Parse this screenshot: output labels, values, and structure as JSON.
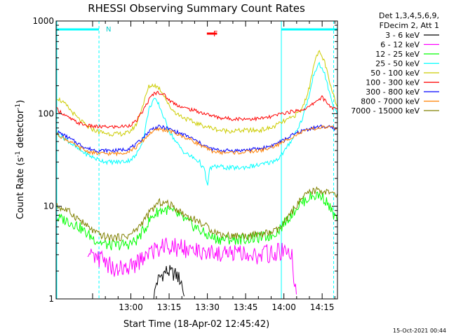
{
  "chart_data": {
    "type": "line",
    "title": "RHESSI Observing Summary Count Rates",
    "xlabel": "Start Time (18-Apr-02 12:45:42)",
    "ylabel_main": "Count Rate (s",
    "ylabel_sup1": "-1",
    "ylabel_mid": " detector",
    "ylabel_sup2": "-1",
    "ylabel_end": ")",
    "yscale": "log",
    "ylim": [
      1,
      1000
    ],
    "xlim_min": [
      -14.3,
      96
    ],
    "x_ticks": [
      {
        "label": "13:00",
        "min": 15
      },
      {
        "label": "13:15",
        "min": 30
      },
      {
        "label": "13:30",
        "min": 45
      },
      {
        "label": "13:45",
        "min": 60
      },
      {
        "label": "14:00",
        "min": 75
      },
      {
        "label": "14:15",
        "min": 90
      }
    ],
    "y_ticks": [
      {
        "label": "1",
        "value": 1
      },
      {
        "label": "10",
        "value": 10
      },
      {
        "label": "100",
        "value": 100
      },
      {
        "label": "1000",
        "value": 1000
      }
    ],
    "legend_header": [
      "Det 1,3,4,5,6,9,",
      "FDecim 2, Att 1"
    ],
    "flags": {
      "n_label": "N",
      "f_label": "F",
      "night_periods": [
        [
          -14.3,
          2.5
        ],
        [
          74.0,
          96
        ]
      ],
      "flare_marker_min": [
        41.5,
        45.5
      ],
      "dashed_lines_min": [
        2.5,
        94.5
      ],
      "solid_lines_min": [
        -14.3,
        74.0
      ],
      "flag_color": "#00ffff",
      "flare_color": "#ff0000"
    },
    "series": [
      {
        "name": "3 - 6 keV",
        "color": "#000000",
        "points": [
          [
            24,
            1
          ],
          [
            25,
            1.5
          ],
          [
            27,
            1.8
          ],
          [
            29,
            2.0
          ],
          [
            31,
            1.9
          ],
          [
            33,
            1.8
          ],
          [
            35,
            1.5
          ],
          [
            36,
            1
          ]
        ]
      },
      {
        "name": "6 - 12 keV",
        "color": "#ff00ff",
        "points": [
          [
            -2,
            3.2
          ],
          [
            3,
            3.0
          ],
          [
            8,
            2.5
          ],
          [
            12,
            2.4
          ],
          [
            16,
            2.6
          ],
          [
            20,
            3.0
          ],
          [
            25,
            3.8
          ],
          [
            30,
            4.2
          ],
          [
            35,
            4.0
          ],
          [
            40,
            3.8
          ],
          [
            45,
            3.6
          ],
          [
            50,
            3.5
          ],
          [
            55,
            3.5
          ],
          [
            60,
            3.4
          ],
          [
            65,
            3.4
          ],
          [
            70,
            3.5
          ],
          [
            75,
            3.6
          ],
          [
            78,
            3.4
          ],
          [
            80,
            1
          ]
        ]
      },
      {
        "name": "12 - 25 keV",
        "color": "#00ff00",
        "points": [
          [
            -14,
            7.5
          ],
          [
            -10,
            7.0
          ],
          [
            -6,
            6.2
          ],
          [
            -2,
            5.0
          ],
          [
            2,
            4.2
          ],
          [
            6,
            3.8
          ],
          [
            10,
            3.8
          ],
          [
            14,
            3.9
          ],
          [
            17,
            4.2
          ],
          [
            20,
            5.5
          ],
          [
            23,
            7.5
          ],
          [
            26,
            9.0
          ],
          [
            29,
            9.2
          ],
          [
            32,
            8.5
          ],
          [
            35,
            7.5
          ],
          [
            38,
            6.5
          ],
          [
            41,
            5.8
          ],
          [
            44,
            5.0
          ],
          [
            47,
            4.6
          ],
          [
            50,
            4.4
          ],
          [
            54,
            4.4
          ],
          [
            58,
            4.4
          ],
          [
            62,
            4.5
          ],
          [
            66,
            4.6
          ],
          [
            70,
            4.8
          ],
          [
            73,
            5.6
          ],
          [
            76,
            7.0
          ],
          [
            79,
            9.0
          ],
          [
            82,
            11.0
          ],
          [
            85,
            12.5
          ],
          [
            88,
            13.2
          ],
          [
            90,
            12.8
          ],
          [
            92,
            11.0
          ],
          [
            94,
            8.5
          ],
          [
            96,
            7.0
          ]
        ]
      },
      {
        "name": "25 - 50 keV",
        "color": "#00ffff",
        "points": [
          [
            -14,
            62
          ],
          [
            -10,
            52
          ],
          [
            -6,
            42
          ],
          [
            -2,
            36
          ],
          [
            2,
            32
          ],
          [
            6,
            30
          ],
          [
            10,
            30
          ],
          [
            14,
            31
          ],
          [
            17,
            35
          ],
          [
            20,
            55
          ],
          [
            22,
            110
          ],
          [
            24,
            145
          ],
          [
            26,
            125
          ],
          [
            28,
            90
          ],
          [
            30,
            65
          ],
          [
            33,
            48
          ],
          [
            36,
            38
          ],
          [
            39,
            34
          ],
          [
            42,
            30
          ],
          [
            44,
            24
          ],
          [
            45,
            16
          ],
          [
            46,
            26
          ],
          [
            49,
            27
          ],
          [
            53,
            26
          ],
          [
            58,
            26
          ],
          [
            62,
            27
          ],
          [
            66,
            28
          ],
          [
            70,
            30
          ],
          [
            73,
            33
          ],
          [
            76,
            42
          ],
          [
            79,
            58
          ],
          [
            82,
            85
          ],
          [
            85,
            160
          ],
          [
            87,
            290
          ],
          [
            89,
            340
          ],
          [
            91,
            270
          ],
          [
            93,
            160
          ],
          [
            95,
            110
          ],
          [
            96,
            95
          ]
        ]
      },
      {
        "name": "50 - 100 keV",
        "color": "#cccc00",
        "points": [
          [
            -14,
            150
          ],
          [
            -10,
            120
          ],
          [
            -6,
            90
          ],
          [
            -2,
            72
          ],
          [
            2,
            64
          ],
          [
            6,
            61
          ],
          [
            10,
            60
          ],
          [
            14,
            62
          ],
          [
            17,
            75
          ],
          [
            20,
            130
          ],
          [
            22,
            195
          ],
          [
            24,
            205
          ],
          [
            26,
            190
          ],
          [
            28,
            160
          ],
          [
            30,
            120
          ],
          [
            33,
            100
          ],
          [
            36,
            90
          ],
          [
            39,
            82
          ],
          [
            42,
            76
          ],
          [
            45,
            72
          ],
          [
            50,
            66
          ],
          [
            55,
            65
          ],
          [
            60,
            66
          ],
          [
            65,
            66
          ],
          [
            70,
            70
          ],
          [
            74,
            80
          ],
          [
            78,
            90
          ],
          [
            82,
            110
          ],
          [
            85,
            190
          ],
          [
            87,
            380
          ],
          [
            89,
            460
          ],
          [
            91,
            360
          ],
          [
            93,
            210
          ],
          [
            95,
            140
          ],
          [
            96,
            125
          ]
        ]
      },
      {
        "name": "100 - 300 keV",
        "color": "#ff0000",
        "points": [
          [
            -14,
            112
          ],
          [
            -10,
            92
          ],
          [
            -6,
            80
          ],
          [
            -2,
            74
          ],
          [
            2,
            72
          ],
          [
            6,
            72
          ],
          [
            10,
            72
          ],
          [
            14,
            74
          ],
          [
            17,
            82
          ],
          [
            20,
            110
          ],
          [
            22,
            140
          ],
          [
            24,
            165
          ],
          [
            26,
            170
          ],
          [
            28,
            160
          ],
          [
            30,
            140
          ],
          [
            33,
            125
          ],
          [
            36,
            115
          ],
          [
            39,
            110
          ],
          [
            42,
            104
          ],
          [
            45,
            98
          ],
          [
            50,
            90
          ],
          [
            55,
            88
          ],
          [
            60,
            88
          ],
          [
            65,
            88
          ],
          [
            70,
            92
          ],
          [
            74,
            100
          ],
          [
            78,
            105
          ],
          [
            82,
            110
          ],
          [
            85,
            118
          ],
          [
            88,
            140
          ],
          [
            90,
            150
          ],
          [
            92,
            130
          ],
          [
            94,
            115
          ],
          [
            96,
            110
          ]
        ]
      },
      {
        "name": "300 - 800 keV",
        "color": "#0000ff",
        "points": [
          [
            -14,
            64
          ],
          [
            -10,
            56
          ],
          [
            -6,
            48
          ],
          [
            -2,
            42
          ],
          [
            2,
            40
          ],
          [
            6,
            40
          ],
          [
            10,
            40
          ],
          [
            14,
            42
          ],
          [
            17,
            46
          ],
          [
            20,
            56
          ],
          [
            23,
            68
          ],
          [
            26,
            72
          ],
          [
            29,
            70
          ],
          [
            32,
            65
          ],
          [
            35,
            60
          ],
          [
            38,
            56
          ],
          [
            41,
            50
          ],
          [
            44,
            45
          ],
          [
            46,
            42
          ],
          [
            50,
            40
          ],
          [
            54,
            40
          ],
          [
            58,
            40
          ],
          [
            62,
            41
          ],
          [
            66,
            42
          ],
          [
            70,
            45
          ],
          [
            74,
            50
          ],
          [
            78,
            58
          ],
          [
            82,
            65
          ],
          [
            86,
            70
          ],
          [
            90,
            73
          ],
          [
            93,
            71
          ],
          [
            96,
            68
          ]
        ]
      },
      {
        "name": "800 - 7000 keV",
        "color": "#ff8000",
        "points": [
          [
            -14,
            60
          ],
          [
            -10,
            52
          ],
          [
            -6,
            44
          ],
          [
            -2,
            39
          ],
          [
            2,
            37
          ],
          [
            6,
            37
          ],
          [
            10,
            37
          ],
          [
            14,
            39
          ],
          [
            17,
            43
          ],
          [
            20,
            52
          ],
          [
            23,
            63
          ],
          [
            26,
            68
          ],
          [
            29,
            66
          ],
          [
            32,
            62
          ],
          [
            35,
            57
          ],
          [
            38,
            53
          ],
          [
            41,
            48
          ],
          [
            44,
            43
          ],
          [
            46,
            40
          ],
          [
            50,
            38
          ],
          [
            54,
            38
          ],
          [
            58,
            38
          ],
          [
            62,
            39
          ],
          [
            66,
            40
          ],
          [
            70,
            43
          ],
          [
            74,
            48
          ],
          [
            78,
            56
          ],
          [
            82,
            63
          ],
          [
            86,
            68
          ],
          [
            90,
            71
          ],
          [
            93,
            71
          ],
          [
            96,
            70
          ]
        ]
      },
      {
        "name": "7000 - 15000 keV",
        "color": "#808000",
        "points": [
          [
            -14,
            10
          ],
          [
            -10,
            9.0
          ],
          [
            -6,
            7.5
          ],
          [
            -2,
            6.0
          ],
          [
            2,
            5.0
          ],
          [
            6,
            4.6
          ],
          [
            10,
            4.6
          ],
          [
            14,
            4.8
          ],
          [
            17,
            5.5
          ],
          [
            20,
            7.0
          ],
          [
            23,
            9.0
          ],
          [
            26,
            11.0
          ],
          [
            29,
            10.8
          ],
          [
            32,
            9.8
          ],
          [
            35,
            8.5
          ],
          [
            38,
            7.6
          ],
          [
            41,
            7.0
          ],
          [
            44,
            6.2
          ],
          [
            47,
            5.5
          ],
          [
            50,
            5.0
          ],
          [
            54,
            4.8
          ],
          [
            58,
            4.8
          ],
          [
            62,
            4.8
          ],
          [
            66,
            5.0
          ],
          [
            70,
            5.2
          ],
          [
            73,
            5.6
          ],
          [
            76,
            7.0
          ],
          [
            79,
            9.5
          ],
          [
            82,
            12.0
          ],
          [
            85,
            14.0
          ],
          [
            88,
            15.0
          ],
          [
            91,
            14.5
          ],
          [
            94,
            13.5
          ],
          [
            96,
            13.0
          ]
        ]
      }
    ]
  },
  "footer_date": "15-Oct-2021 00:44"
}
